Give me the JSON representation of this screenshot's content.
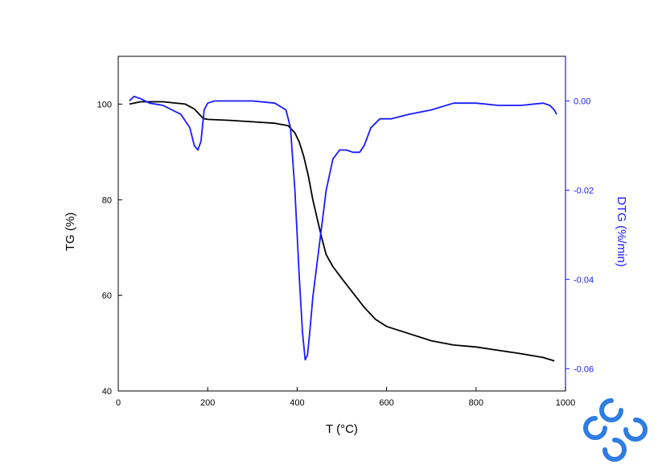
{
  "chart_data": {
    "type": "line",
    "x_axis": {
      "label": "T (°C)",
      "range": [
        0,
        1000
      ],
      "ticks": [
        0,
        200,
        400,
        600,
        800,
        1000
      ]
    },
    "y_axis_left": {
      "label": "TG (%)",
      "range": [
        40,
        110
      ],
      "ticks": [
        40,
        60,
        80,
        100
      ]
    },
    "y_axis_right": {
      "label": "DTG (%/min)",
      "range": [
        -0.065,
        0.01
      ],
      "ticks": [
        -0.06,
        -0.04,
        -0.02,
        0.0
      ],
      "tick_labels": [
        "-0.06",
        "-0.04",
        "-0.02",
        "0.00"
      ]
    },
    "series": [
      {
        "axis": "left",
        "color": "#000000",
        "x": [
          25,
          50,
          100,
          150,
          170,
          180,
          190,
          200,
          250,
          300,
          350,
          380,
          395,
          405,
          415,
          425,
          435,
          445,
          455,
          465,
          480,
          500,
          525,
          550,
          575,
          600,
          650,
          700,
          750,
          800,
          850,
          900,
          950,
          975
        ],
        "y": [
          100,
          100.5,
          100.5,
          100,
          99,
          98,
          97,
          96.8,
          96.6,
          96.3,
          96,
          95.5,
          94,
          92,
          89,
          85,
          80,
          76,
          72,
          68.5,
          66,
          63.5,
          60.5,
          57.5,
          55,
          53.5,
          52,
          50.5,
          49.6,
          49.2,
          48.5,
          47.8,
          47,
          46.3
        ]
      },
      {
        "axis": "right",
        "color": "#1a1aff",
        "x": [
          25,
          35,
          50,
          70,
          100,
          140,
          160,
          170,
          178,
          185,
          192,
          200,
          215,
          250,
          300,
          350,
          375,
          385,
          395,
          405,
          412,
          418,
          423,
          428,
          435,
          445,
          455,
          465,
          480,
          495,
          510,
          525,
          540,
          550,
          565,
          585,
          610,
          650,
          700,
          750,
          800,
          850,
          900,
          950,
          965,
          975,
          980
        ],
        "y": [
          0.0,
          0.001,
          0.0005,
          -0.0005,
          -0.001,
          -0.003,
          -0.006,
          -0.01,
          -0.011,
          -0.009,
          -0.002,
          -0.0005,
          0.0,
          0.0,
          0.0,
          -0.0005,
          -0.002,
          -0.006,
          -0.02,
          -0.04,
          -0.052,
          -0.058,
          -0.057,
          -0.052,
          -0.044,
          -0.036,
          -0.028,
          -0.02,
          -0.013,
          -0.011,
          -0.011,
          -0.0115,
          -0.0115,
          -0.01,
          -0.006,
          -0.004,
          -0.004,
          -0.003,
          -0.002,
          -0.0005,
          -0.0005,
          -0.001,
          -0.001,
          -0.0005,
          -0.001,
          -0.002,
          -0.003
        ]
      }
    ],
    "grid": false
  },
  "logo": {
    "name": "cs-logo-icon",
    "color": "#2f7de1"
  }
}
